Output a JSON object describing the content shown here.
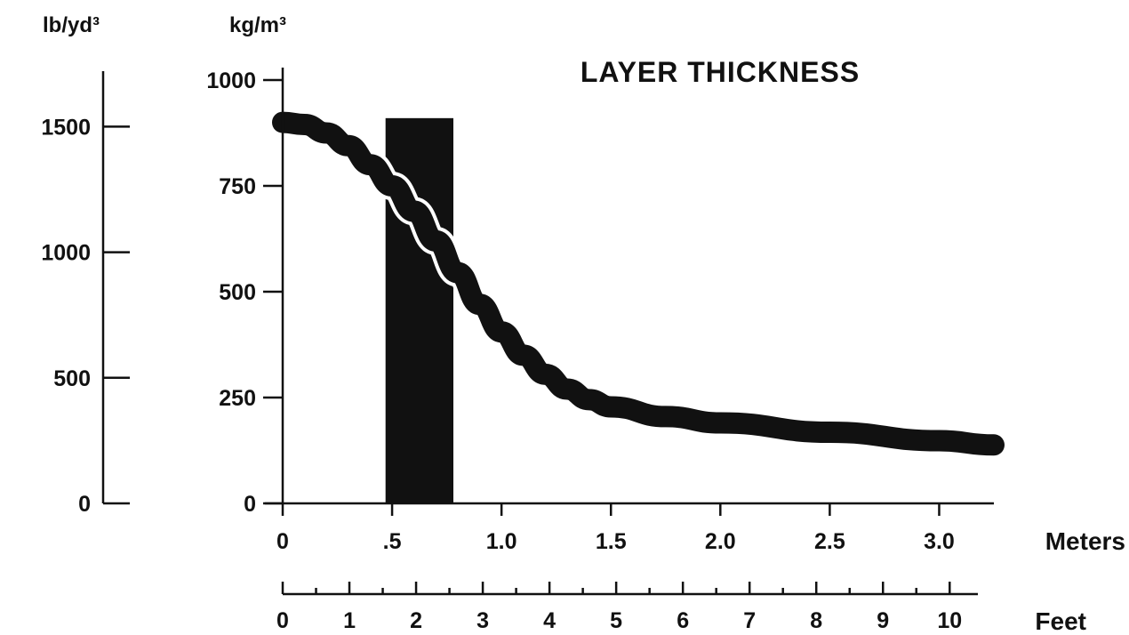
{
  "chart_data": {
    "type": "line",
    "title": "LAYER THICKNESS",
    "x_unit_primary": "Meters",
    "x_unit_secondary": "Feet",
    "y_unit_primary": "kg/m³",
    "y_unit_secondary": "lb/yd³",
    "x_range": [
      0,
      3.25
    ],
    "y_range": [
      0,
      1000
    ],
    "x_ticks_meters": [
      {
        "value": 0,
        "label": "0"
      },
      {
        "value": 0.5,
        "label": ".5"
      },
      {
        "value": 1.0,
        "label": "1.0"
      },
      {
        "value": 1.5,
        "label": "1.5"
      },
      {
        "value": 2.0,
        "label": "2.0"
      },
      {
        "value": 2.5,
        "label": "2.5"
      },
      {
        "value": 3.0,
        "label": "3.0"
      }
    ],
    "x_ticks_feet": [
      {
        "value": 0,
        "label": "0"
      },
      {
        "value": 1,
        "label": "1"
      },
      {
        "value": 2,
        "label": "2"
      },
      {
        "value": 3,
        "label": "3"
      },
      {
        "value": 4,
        "label": "4"
      },
      {
        "value": 5,
        "label": "5"
      },
      {
        "value": 6,
        "label": "6"
      },
      {
        "value": 7,
        "label": "7"
      },
      {
        "value": 8,
        "label": "8"
      },
      {
        "value": 9,
        "label": "9"
      },
      {
        "value": 10,
        "label": "10"
      }
    ],
    "y_ticks_kg": [
      {
        "value": 0,
        "label": "0"
      },
      {
        "value": 250,
        "label": "250"
      },
      {
        "value": 500,
        "label": "500"
      },
      {
        "value": 750,
        "label": "750"
      },
      {
        "value": 1000,
        "label": "1000"
      }
    ],
    "y_ticks_lb": [
      {
        "value": 0,
        "label": "0"
      },
      {
        "value": 500,
        "label": "500"
      },
      {
        "value": 1000,
        "label": "1000"
      },
      {
        "value": 1500,
        "label": "1500"
      }
    ],
    "series": [
      {
        "x": [
          0,
          0.1,
          0.2,
          0.3,
          0.4,
          0.5,
          0.6,
          0.7,
          0.8,
          0.9,
          1.0,
          1.1,
          1.2,
          1.3,
          1.4,
          1.5,
          1.75,
          2.0,
          2.5,
          3.0,
          3.25
        ],
        "y": [
          900,
          895,
          875,
          845,
          800,
          750,
          690,
          620,
          545,
          470,
          405,
          350,
          305,
          270,
          245,
          228,
          205,
          190,
          168,
          148,
          138
        ]
      }
    ],
    "highlight_band": {
      "x_start": 0.47,
      "x_end": 0.78,
      "y_top": 910
    },
    "grid": false,
    "legend": "none",
    "colors": {
      "ink": "#111111",
      "background": "#ffffff"
    }
  }
}
